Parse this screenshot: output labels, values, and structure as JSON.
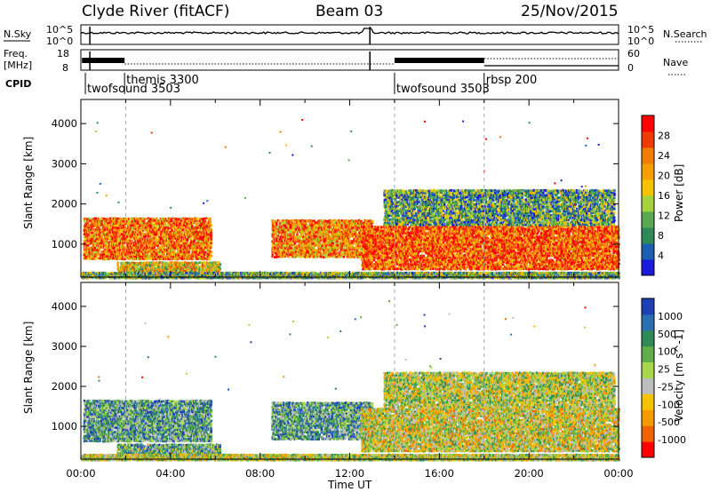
{
  "header": {
    "station": "Clyde River (fitACF)",
    "beam": "Beam 03",
    "date": "25/Nov/2015"
  },
  "top_panels": {
    "nsky_label": "N.Sky",
    "nsky_tick_top": "10^5",
    "nsky_tick_bottom": "10^0",
    "nsearch_label": "N.Search",
    "nsearch_tick_top": "10^5",
    "nsearch_tick_bottom": "10^0",
    "freq_label_1": "Freq.",
    "freq_label_2": "[MHz]",
    "freq_tick_top": "18",
    "freq_tick_bottom": "8",
    "nave_label": "Nave",
    "nave_tick_top": "60",
    "nave_tick_bottom": "0",
    "cpid_label": "CPID",
    "cpid_entries": [
      {
        "text": "twofsound 3503",
        "time": 0.2
      },
      {
        "text": "themis 3300",
        "time": 1.95
      },
      {
        "text": "twofsound 3503",
        "time": 14.0
      },
      {
        "text": "rbsp 200",
        "time": 18.0
      }
    ]
  },
  "chart_data": [
    {
      "type": "heatmap",
      "name": "power",
      "xlabel": "",
      "ylabel": "Slant Range [km]",
      "xlim": [
        0,
        24
      ],
      "ylim": [
        180,
        4600
      ],
      "yticks": [
        "1000",
        "2000",
        "3000",
        "4000"
      ],
      "colorbar": {
        "label": "Power [dB]",
        "ticks": [
          "4",
          "8",
          "12",
          "16",
          "20",
          "24",
          "28"
        ],
        "colors": [
          "#1a1adc",
          "#1b5fb0",
          "#2e8b57",
          "#5aa850",
          "#a5d23c",
          "#f5c200",
          "#f5a000",
          "#f07d00",
          "#ef3a00",
          "#ff0000"
        ]
      },
      "regions": [
        {
          "t0": 0.1,
          "t1": 5.8,
          "r0": 650,
          "r1": 1700,
          "level": 0.75
        },
        {
          "t0": 1.6,
          "t1": 6.2,
          "r0": 300,
          "r1": 600,
          "level": 0.55
        },
        {
          "t0": 8.5,
          "t1": 13.0,
          "r0": 700,
          "r1": 1650,
          "level": 0.7
        },
        {
          "t0": 12.5,
          "t1": 24.0,
          "r0": 400,
          "r1": 1500,
          "level": 0.8
        },
        {
          "t0": 13.5,
          "t1": 23.8,
          "r0": 1500,
          "r1": 2400,
          "level": 0.3
        },
        {
          "t0": 0.0,
          "t1": 24.0,
          "r0": 180,
          "r1": 330,
          "level": 0.35
        }
      ]
    },
    {
      "type": "heatmap",
      "name": "velocity",
      "xlabel": "Time UT",
      "ylabel": "Slant Range [km]",
      "xlim": [
        0,
        24
      ],
      "ylim": [
        180,
        4600
      ],
      "xticks": [
        "00:00",
        "04:00",
        "08:00",
        "12:00",
        "16:00",
        "20:00",
        "00:00"
      ],
      "yticks": [
        "1000",
        "2000",
        "3000",
        "4000"
      ],
      "colorbar": {
        "label": "Velocity [m s^-1]",
        "ticks": [
          "1000",
          "500",
          "100",
          "25",
          "-25",
          "-100",
          "-500",
          "-1000"
        ],
        "colors": [
          "#1f3fb4",
          "#2a6fb0",
          "#2e8b57",
          "#5fae4a",
          "#a8d84a",
          "#bdbdbd",
          "#f5c200",
          "#f59a00",
          "#f06400",
          "#ff0000"
        ]
      },
      "regions": [
        {
          "t0": 0.1,
          "t1": 5.8,
          "r0": 650,
          "r1": 1700,
          "level": 0.3
        },
        {
          "t0": 1.6,
          "t1": 6.2,
          "r0": 300,
          "r1": 600,
          "level": 0.35
        },
        {
          "t0": 8.5,
          "t1": 13.0,
          "r0": 700,
          "r1": 1650,
          "level": 0.3
        },
        {
          "t0": 12.5,
          "t1": 24.0,
          "r0": 400,
          "r1": 1500,
          "level": 0.55
        },
        {
          "t0": 13.5,
          "t1": 23.8,
          "r0": 1500,
          "r1": 2400,
          "level": 0.5
        },
        {
          "t0": 0.0,
          "t1": 24.0,
          "r0": 180,
          "r1": 330,
          "level": 0.5
        }
      ]
    }
  ]
}
